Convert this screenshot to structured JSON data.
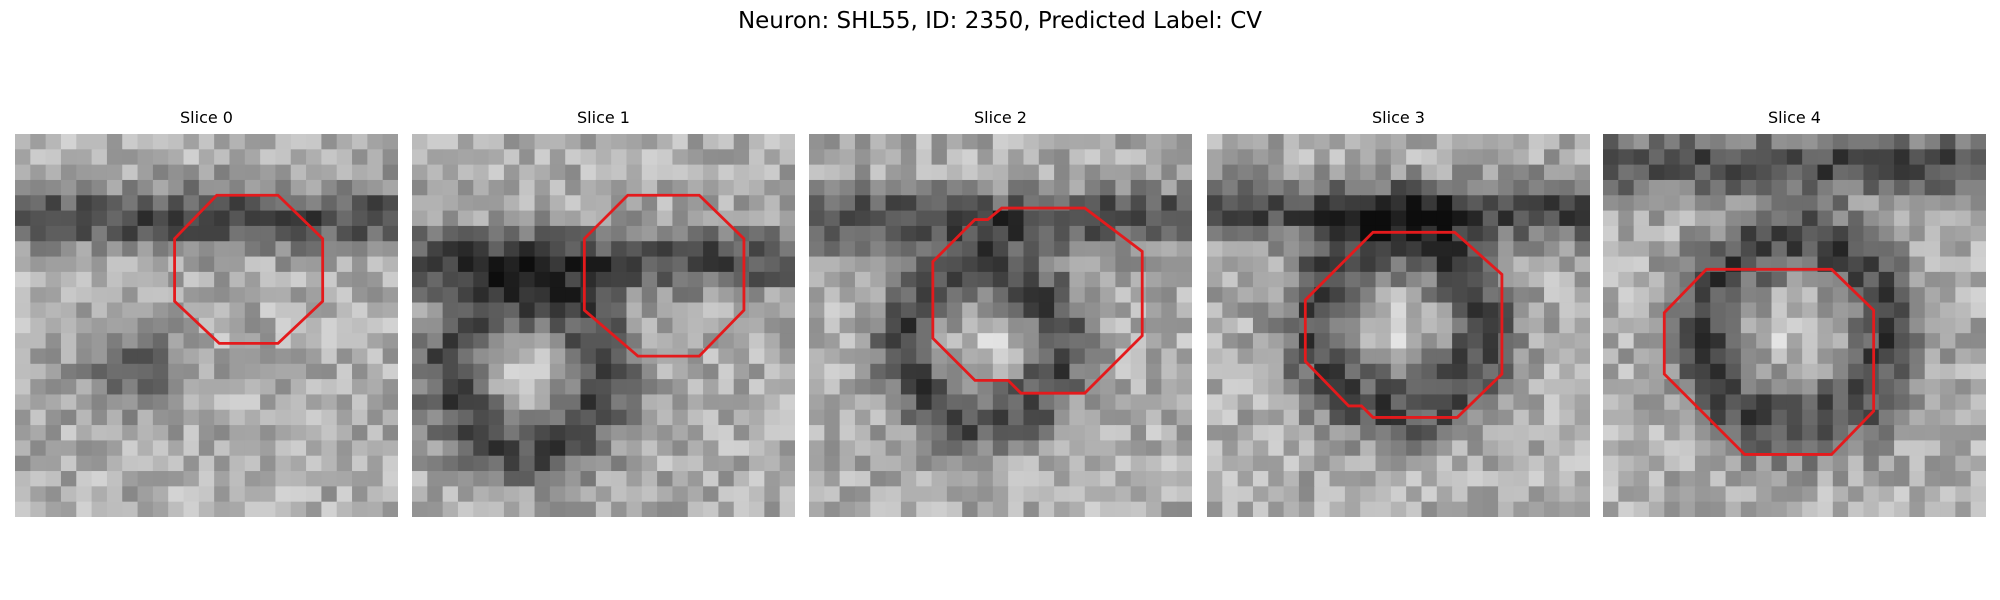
{
  "title": "Neuron: SHL55, ID: 2350, Predicted Label: CV",
  "panels": [
    {
      "title": "Slice 0"
    },
    {
      "title": "Slice 1"
    },
    {
      "title": "Slice 2"
    },
    {
      "title": "Slice 3"
    },
    {
      "title": "Slice 4"
    }
  ]
}
